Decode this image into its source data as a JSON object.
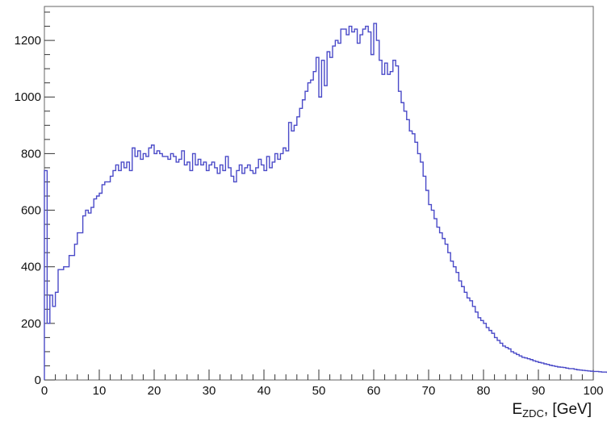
{
  "chart_data": {
    "type": "line",
    "style": "step-histogram",
    "xlabel_main": "E",
    "xlabel_sub": "ZDC",
    "xlabel_rest": ", [GeV]",
    "ylabel": "",
    "title": "",
    "xlim": [
      0,
      100
    ],
    "ylim": [
      0,
      1320
    ],
    "grid": false,
    "legend": "none",
    "line_color": "#4a4ac8",
    "x_ticks": [
      "0",
      "10",
      "20",
      "30",
      "40",
      "50",
      "60",
      "70",
      "80",
      "90",
      "100"
    ],
    "y_ticks": [
      "0",
      "200",
      "400",
      "600",
      "800",
      "1000",
      "1200"
    ],
    "bin_width": 0.5,
    "series": [
      {
        "values": [
          740,
          200,
          300,
          260,
          310,
          390,
          390,
          400,
          400,
          440,
          440,
          480,
          520,
          520,
          580,
          600,
          590,
          610,
          640,
          650,
          660,
          690,
          700,
          700,
          720,
          740,
          760,
          740,
          770,
          750,
          770,
          740,
          820,
          790,
          810,
          780,
          800,
          790,
          820,
          830,
          800,
          810,
          800,
          790,
          790,
          780,
          800,
          790,
          770,
          780,
          810,
          760,
          770,
          740,
          800,
          760,
          780,
          760,
          770,
          740,
          760,
          770,
          750,
          730,
          760,
          740,
          790,
          750,
          720,
          700,
          740,
          760,
          730,
          750,
          760,
          740,
          730,
          750,
          780,
          760,
          740,
          790,
          750,
          770,
          800,
          780,
          800,
          820,
          810,
          910,
          880,
          900,
          930,
          960,
          990,
          1020,
          1050,
          1060,
          1090,
          1140,
          1000,
          1130,
          1040,
          1160,
          1140,
          1180,
          1200,
          1190,
          1240,
          1240,
          1220,
          1250,
          1230,
          1240,
          1190,
          1220,
          1240,
          1250,
          1230,
          1150,
          1260,
          1200,
          1130,
          1080,
          1120,
          1080,
          1090,
          1130,
          1110,
          1020,
          980,
          950,
          920,
          880,
          870,
          840,
          800,
          770,
          720,
          670,
          620,
          600,
          570,
          540,
          520,
          500,
          480,
          450,
          420,
          400,
          380,
          350,
          330,
          310,
          290,
          280,
          260,
          240,
          220,
          210,
          200,
          185,
          175,
          165,
          150,
          140,
          130,
          120,
          115,
          110,
          100,
          95,
          90,
          85,
          80,
          78,
          75,
          72,
          68,
          65,
          62,
          60,
          57,
          55,
          52,
          50,
          48,
          46,
          45,
          44,
          42,
          40,
          40,
          38,
          36,
          35,
          34,
          33,
          32,
          31,
          30,
          30,
          29,
          28,
          28,
          27,
          26,
          26,
          25,
          24,
          24,
          23
        ]
      }
    ]
  }
}
